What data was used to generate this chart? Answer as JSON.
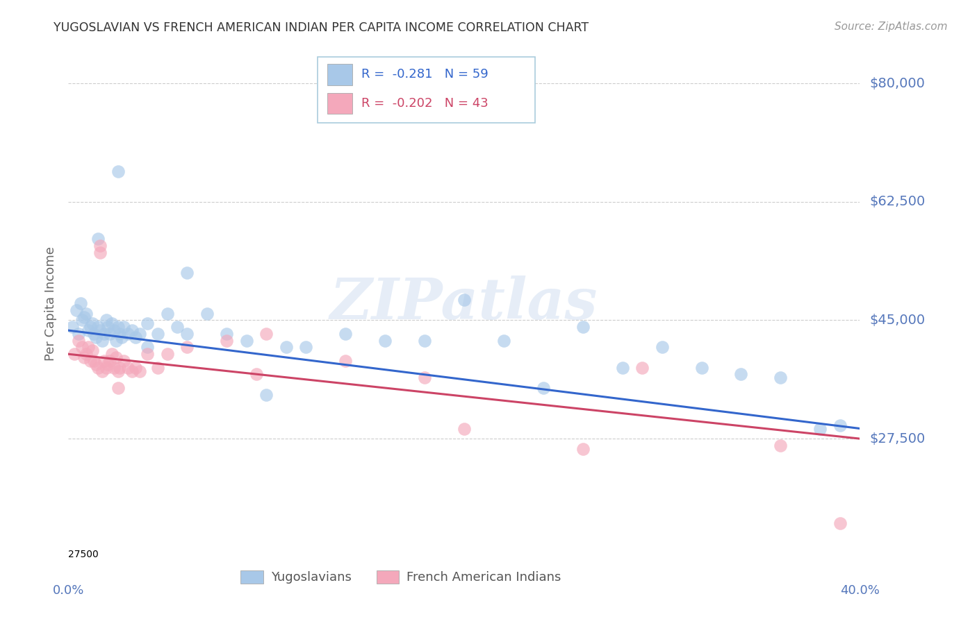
{
  "title": "YUGOSLAVIAN VS FRENCH AMERICAN INDIAN PER CAPITA INCOME CORRELATION CHART",
  "source": "Source: ZipAtlas.com",
  "ylabel": "Per Capita Income",
  "ytick_labels": [
    "$27,500",
    "$45,000",
    "$62,500",
    "$80,000"
  ],
  "ytick_values": [
    27500,
    45000,
    62500,
    80000
  ],
  "ymin": 10000,
  "ymax": 85000,
  "xmin": 0.0,
  "xmax": 0.4,
  "watermark": "ZIPatlas",
  "legend_blue_r": "-0.281",
  "legend_blue_n": "59",
  "legend_pink_r": "-0.202",
  "legend_pink_n": "43",
  "legend_label_blue": "Yugoslavians",
  "legend_label_pink": "French American Indians",
  "blue_color": "#a8c8e8",
  "pink_color": "#f4a8bb",
  "blue_line_color": "#3366cc",
  "pink_line_color": "#cc4466",
  "grid_color": "#cccccc",
  "title_color": "#333333",
  "ylabel_color": "#666666",
  "axis_tick_color": "#5577bb",
  "yugoslavian_x": [
    0.002,
    0.004,
    0.005,
    0.006,
    0.007,
    0.008,
    0.009,
    0.01,
    0.011,
    0.012,
    0.013,
    0.014,
    0.015,
    0.016,
    0.017,
    0.018,
    0.019,
    0.02,
    0.021,
    0.022,
    0.023,
    0.024,
    0.025,
    0.026,
    0.027,
    0.028,
    0.03,
    0.032,
    0.034,
    0.036,
    0.04,
    0.045,
    0.05,
    0.055,
    0.06,
    0.07,
    0.08,
    0.09,
    0.1,
    0.11,
    0.12,
    0.14,
    0.16,
    0.18,
    0.2,
    0.22,
    0.24,
    0.26,
    0.28,
    0.3,
    0.32,
    0.34,
    0.36,
    0.38,
    0.39,
    0.04,
    0.06,
    0.025,
    0.015
  ],
  "yugoslavian_y": [
    44000,
    46500,
    43000,
    47500,
    45000,
    45500,
    46000,
    43500,
    44000,
    44500,
    43000,
    42500,
    44000,
    43500,
    42000,
    43000,
    45000,
    44000,
    43000,
    44500,
    43500,
    42000,
    44000,
    43000,
    42500,
    44000,
    43000,
    43500,
    42500,
    43000,
    44500,
    43000,
    46000,
    44000,
    52000,
    46000,
    43000,
    42000,
    34000,
    41000,
    41000,
    43000,
    42000,
    42000,
    48000,
    42000,
    35000,
    44000,
    38000,
    41000,
    38000,
    37000,
    36500,
    29000,
    29500,
    41000,
    43000,
    67000,
    57000
  ],
  "french_x": [
    0.003,
    0.005,
    0.007,
    0.008,
    0.009,
    0.01,
    0.011,
    0.012,
    0.013,
    0.014,
    0.015,
    0.016,
    0.017,
    0.018,
    0.019,
    0.02,
    0.021,
    0.022,
    0.023,
    0.024,
    0.025,
    0.026,
    0.028,
    0.03,
    0.032,
    0.034,
    0.036,
    0.04,
    0.045,
    0.05,
    0.06,
    0.08,
    0.095,
    0.1,
    0.14,
    0.18,
    0.2,
    0.26,
    0.29,
    0.36,
    0.39,
    0.016,
    0.025
  ],
  "french_y": [
    40000,
    42000,
    41000,
    39500,
    40000,
    41000,
    39000,
    40500,
    39000,
    38500,
    38000,
    55000,
    37500,
    39000,
    38000,
    38500,
    39000,
    40000,
    38000,
    39500,
    37500,
    38000,
    39000,
    38000,
    37500,
    38000,
    37500,
    40000,
    38000,
    40000,
    41000,
    42000,
    37000,
    43000,
    39000,
    36500,
    29000,
    26000,
    38000,
    26500,
    15000,
    56000,
    35000
  ]
}
